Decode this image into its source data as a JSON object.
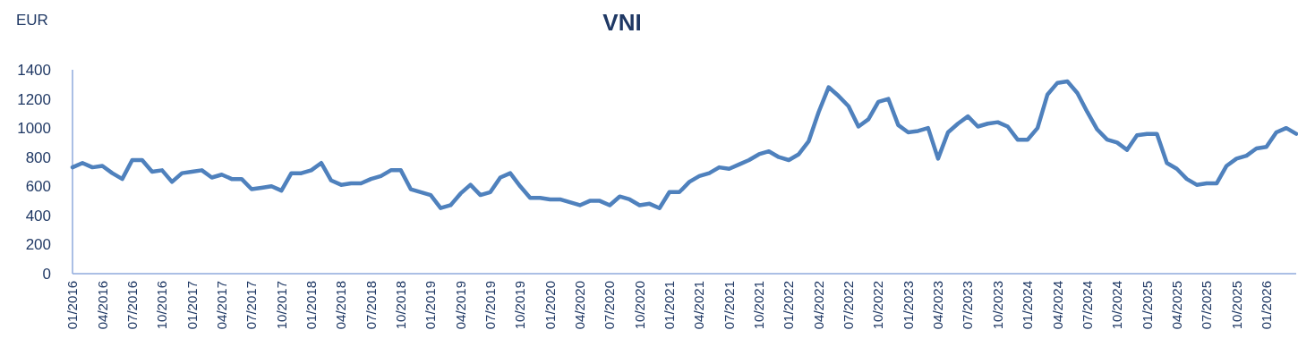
{
  "chart_data": {
    "type": "line",
    "title": "VNI",
    "ylabel": "EUR",
    "categories": [
      "01/2016",
      null,
      null,
      "04/2016",
      null,
      null,
      "07/2016",
      null,
      null,
      "10/2016",
      null,
      null,
      "01/2017",
      null,
      null,
      "04/2017",
      null,
      null,
      "07/2017",
      null,
      null,
      "10/2017",
      null,
      null,
      "01/2018",
      null,
      null,
      "04/2018",
      null,
      null,
      "07/2018",
      null,
      null,
      "10/2018",
      null,
      null,
      "01/2019",
      null,
      null,
      "04/2019",
      null,
      null,
      "07/2019",
      null,
      null,
      "10/2019",
      null,
      null,
      "01/2020",
      null,
      null,
      "04/2020",
      null,
      null,
      "07/2020",
      null,
      null,
      "10/2020",
      null,
      null,
      "01/2021",
      null,
      null,
      "04/2021",
      null,
      null,
      "07/2021",
      null,
      null,
      "10/2021",
      null,
      null,
      "01/2022",
      null,
      null,
      "04/2022",
      null,
      null,
      "07/2022",
      null,
      null,
      "10/2022",
      null,
      null,
      "01/2023",
      null,
      null,
      "04/2023",
      null,
      null,
      "07/2023",
      null,
      null,
      "10/2023",
      null,
      null,
      "01/2024",
      null,
      null,
      "04/2024",
      null,
      null,
      "07/2024",
      null,
      null,
      "10/2024",
      null,
      null,
      "01/2025",
      null,
      null,
      "04/2025",
      null,
      null,
      "07/2025",
      null,
      null,
      "10/2025",
      null,
      null,
      "01/2026",
      null,
      null,
      null
    ],
    "series": [
      {
        "color": "#4f81bd",
        "values": [
          730,
          760,
          730,
          740,
          690,
          650,
          780,
          780,
          700,
          710,
          630,
          690,
          700,
          710,
          660,
          680,
          650,
          650,
          580,
          590,
          600,
          570,
          690,
          690,
          710,
          760,
          640,
          610,
          620,
          620,
          650,
          670,
          710,
          710,
          580,
          560,
          540,
          450,
          470,
          550,
          610,
          540,
          560,
          660,
          690,
          600,
          520,
          520,
          510,
          510,
          490,
          470,
          500,
          500,
          470,
          530,
          510,
          470,
          480,
          450,
          560,
          560,
          630,
          670,
          690,
          730,
          720,
          750,
          780,
          820,
          840,
          800,
          780,
          820,
          910,
          1110,
          1280,
          1220,
          1150,
          1010,
          1060,
          1180,
          1200,
          1020,
          970,
          980,
          1000,
          790,
          970,
          1030,
          1080,
          1010,
          1030,
          1040,
          1010,
          920,
          920,
          1000,
          1230,
          1310,
          1320,
          1240,
          1110,
          990,
          920,
          900,
          850,
          950,
          960,
          960,
          760,
          720,
          650,
          610,
          620,
          620,
          740,
          790,
          810,
          860,
          870,
          970,
          1000,
          960
        ]
      }
    ],
    "ylim": [
      0,
      1400
    ],
    "yticks": [
      0,
      200,
      400,
      600,
      800,
      1000,
      1200,
      1400
    ],
    "grid": false,
    "marker": "none",
    "line_style": "solid"
  }
}
